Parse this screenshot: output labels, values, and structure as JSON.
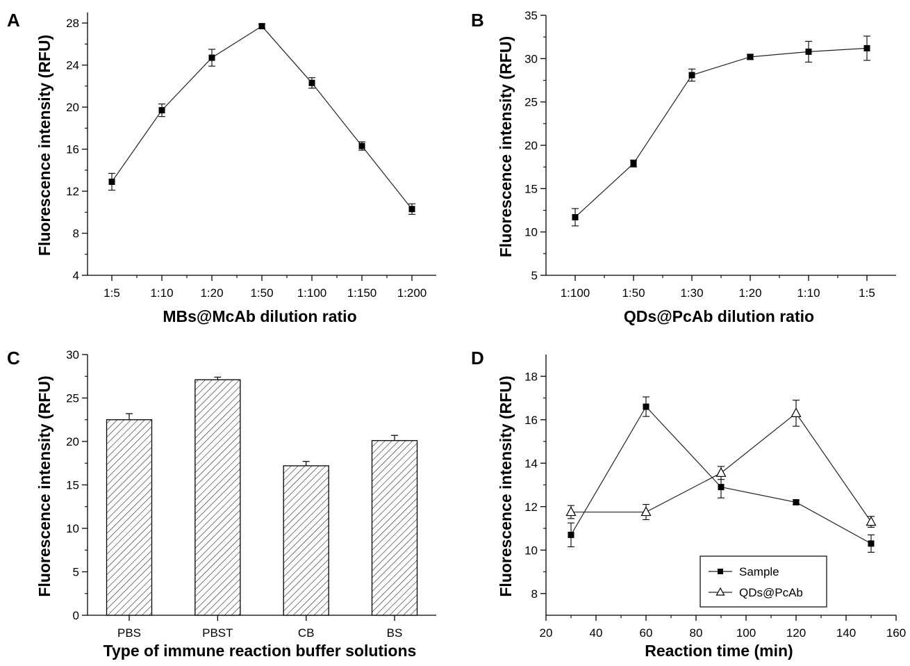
{
  "chart_data": [
    {
      "panel": "A",
      "type": "line",
      "xlabel": "MBs@McAb dilution ratio",
      "ylabel": "Fluorescence intensity (RFU)",
      "categories": [
        "1:5",
        "1:10",
        "1:20",
        "1:50",
        "1:100",
        "1:150",
        "1:200"
      ],
      "ylim": [
        4,
        29
      ],
      "yticks": [
        "4",
        "8",
        "12",
        "16",
        "20",
        "24",
        "28"
      ],
      "series": [
        {
          "values": [
            12.9,
            19.7,
            24.7,
            27.7,
            22.3,
            16.3,
            10.3
          ],
          "errors": [
            0.8,
            0.6,
            0.8,
            0.2,
            0.5,
            0.4,
            0.5
          ]
        }
      ]
    },
    {
      "panel": "B",
      "type": "line",
      "xlabel": "QDs@PcAb dilution ratio",
      "ylabel": "Fluorescence intensity (RFU)",
      "categories": [
        "1:100",
        "1:50",
        "1:30",
        "1:20",
        "1:10",
        "1:5"
      ],
      "ylim": [
        5,
        35
      ],
      "yticks": [
        "5",
        "10",
        "15",
        "20",
        "25",
        "30",
        "35"
      ],
      "series": [
        {
          "values": [
            11.7,
            17.9,
            28.1,
            30.2,
            30.8,
            31.2
          ],
          "errors": [
            1.0,
            0.4,
            0.7,
            0.3,
            1.2,
            1.4
          ]
        }
      ]
    },
    {
      "panel": "C",
      "type": "bar",
      "xlabel": "Type of immune reaction buffer solutions",
      "ylabel": "Fluorescence intensity (RFU)",
      "categories": [
        "PBS",
        "PBST",
        "CB",
        "BS"
      ],
      "ylim": [
        0,
        30
      ],
      "yticks": [
        "0",
        "5",
        "10",
        "15",
        "20",
        "25",
        "30"
      ],
      "series": [
        {
          "values": [
            22.5,
            27.1,
            17.2,
            20.1
          ],
          "errors": [
            0.7,
            0.3,
            0.5,
            0.6
          ]
        }
      ]
    },
    {
      "panel": "D",
      "type": "line",
      "xlabel": "Reaction time (min)",
      "ylabel": "Fluorescence intensity (RFU)",
      "xlim": [
        20,
        160
      ],
      "xticks": [
        "20",
        "40",
        "60",
        "80",
        "100",
        "120",
        "140",
        "160"
      ],
      "ylim": [
        7,
        19
      ],
      "yticks": [
        "8",
        "10",
        "12",
        "14",
        "16",
        "18"
      ],
      "legend_position": "bottom-right",
      "series": [
        {
          "name": "Sample",
          "marker": "filled-square",
          "x": [
            30,
            60,
            90,
            120,
            150
          ],
          "values": [
            10.7,
            16.6,
            12.9,
            12.2,
            10.3
          ],
          "errors": [
            0.55,
            0.45,
            0.5,
            0.1,
            0.4
          ]
        },
        {
          "name": "QDs@PcAb",
          "marker": "open-triangle",
          "x": [
            30,
            60,
            90,
            120,
            150
          ],
          "values": [
            11.75,
            11.75,
            13.55,
            16.3,
            11.3
          ],
          "errors": [
            0.3,
            0.35,
            0.3,
            0.6,
            0.25
          ]
        }
      ]
    }
  ]
}
